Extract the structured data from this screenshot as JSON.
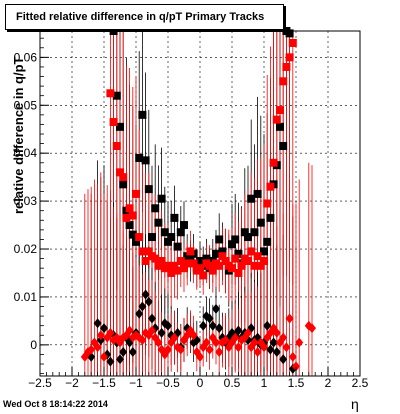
{
  "chart_data": {
    "type": "scatter",
    "title": "Fitted relative difference in q/pT  Primary Tracks",
    "xlabel": "η",
    "ylabel": "relative difference in q/pT",
    "xlim": [
      -2.5,
      2.5
    ],
    "ylim": [
      -0.0065,
      0.0655
    ],
    "x_ticks": [
      "−2.5",
      "−2",
      "−1.5",
      "−1",
      "−0.5",
      "0",
      "0.5",
      "1",
      "1.5",
      "2",
      "2.5"
    ],
    "y_ticks": [
      "0",
      "0.01",
      "0.02",
      "0.03",
      "0.04",
      "0.05",
      "0.06"
    ],
    "grid": true,
    "footer": "Wed Oct  8 18:14:22 2014",
    "series": [
      {
        "marker": "square",
        "color": "#000000",
        "points": [
          [
            -1.35,
            0.0655
          ],
          [
            -1.3,
            0.052
          ],
          [
            -1.25,
            0.0455
          ],
          [
            -1.2,
            0.0335
          ],
          [
            -1.15,
            0.028
          ],
          [
            -1.1,
            0.025
          ],
          [
            -1.05,
            0.023
          ],
          [
            -1.0,
            0.0215
          ],
          [
            -0.95,
            0.039
          ],
          [
            -0.9,
            0.048
          ],
          [
            -0.85,
            0.0385
          ],
          [
            -0.8,
            0.0325
          ],
          [
            -0.75,
            0.0225
          ],
          [
            -0.7,
            0.0285
          ],
          [
            -0.65,
            0.0255
          ],
          [
            -0.6,
            0.0305
          ],
          [
            -0.55,
            0.0235
          ],
          [
            -0.5,
            0.0215
          ],
          [
            -0.45,
            0.0225
          ],
          [
            -0.4,
            0.0265
          ],
          [
            -0.35,
            0.0205
          ],
          [
            -0.3,
            0.0235
          ],
          [
            -0.25,
            0.025
          ],
          [
            -0.2,
            0.0185
          ],
          [
            -0.15,
            0.0175
          ],
          [
            -0.1,
            0.019
          ],
          [
            -0.05,
            0.016
          ],
          [
            0.0,
            0.0175
          ],
          [
            0.05,
            0.0165
          ],
          [
            0.1,
            0.018
          ],
          [
            0.15,
            0.016
          ],
          [
            0.2,
            0.0175
          ],
          [
            0.25,
            0.019
          ],
          [
            0.3,
            0.022
          ],
          [
            0.35,
            0.0195
          ],
          [
            0.4,
            0.0175
          ],
          [
            0.45,
            0.0155
          ],
          [
            0.5,
            0.021
          ],
          [
            0.55,
            0.022
          ],
          [
            0.6,
            0.019
          ],
          [
            0.65,
            0.017
          ],
          [
            0.7,
            0.0235
          ],
          [
            0.75,
            0.0225
          ],
          [
            0.8,
            0.0305
          ],
          [
            0.85,
            0.0235
          ],
          [
            0.9,
            0.0315
          ],
          [
            0.95,
            0.0255
          ],
          [
            1.0,
            0.0195
          ],
          [
            1.05,
            0.0215
          ],
          [
            1.1,
            0.0265
          ],
          [
            1.15,
            0.0335
          ],
          [
            1.2,
            0.0375
          ],
          [
            1.25,
            0.0455
          ],
          [
            1.3,
            0.0415
          ],
          [
            1.35,
            0.0655
          ],
          [
            1.4,
            0.065
          ]
        ]
      },
      {
        "marker": "square",
        "color": "#ff0000",
        "points": [
          [
            -1.4,
            0.0525
          ],
          [
            -1.35,
            0.0465
          ],
          [
            -1.3,
            0.0415
          ],
          [
            -1.25,
            0.036
          ],
          [
            -1.2,
            0.035
          ],
          [
            -1.15,
            0.0265
          ],
          [
            -1.1,
            0.0285
          ],
          [
            -1.05,
            0.027
          ],
          [
            -1.0,
            0.0315
          ],
          [
            -0.95,
            0.0225
          ],
          [
            -0.9,
            0.0195
          ],
          [
            -0.85,
            0.0175
          ],
          [
            -0.8,
            0.0195
          ],
          [
            -0.75,
            0.0185
          ],
          [
            -0.7,
            0.018
          ],
          [
            -0.65,
            0.0165
          ],
          [
            -0.6,
            0.0175
          ],
          [
            -0.55,
            0.016
          ],
          [
            -0.5,
            0.0165
          ],
          [
            -0.45,
            0.015
          ],
          [
            -0.4,
            0.0165
          ],
          [
            -0.35,
            0.0155
          ],
          [
            -0.3,
            0.0175
          ],
          [
            -0.25,
            0.016
          ],
          [
            -0.2,
            0.017
          ],
          [
            -0.15,
            0.0195
          ],
          [
            -0.1,
            0.017
          ],
          [
            -0.05,
            0.0155
          ],
          [
            0.0,
            0.016
          ],
          [
            0.05,
            0.0145
          ],
          [
            0.1,
            0.017
          ],
          [
            0.15,
            0.0165
          ],
          [
            0.2,
            0.0155
          ],
          [
            0.25,
            0.017
          ],
          [
            0.3,
            0.0165
          ],
          [
            0.35,
            0.0185
          ],
          [
            0.4,
            0.0175
          ],
          [
            0.45,
            0.0165
          ],
          [
            0.5,
            0.016
          ],
          [
            0.55,
            0.018
          ],
          [
            0.6,
            0.015
          ],
          [
            0.65,
            0.0165
          ],
          [
            0.7,
            0.018
          ],
          [
            0.75,
            0.0175
          ],
          [
            0.8,
            0.0195
          ],
          [
            0.85,
            0.0165
          ],
          [
            0.9,
            0.0185
          ],
          [
            0.95,
            0.0165
          ],
          [
            1.0,
            0.0175
          ],
          [
            1.05,
            0.0295
          ],
          [
            1.1,
            0.033
          ],
          [
            1.15,
            0.038
          ],
          [
            1.2,
            0.047
          ],
          [
            1.25,
            0.049
          ],
          [
            1.3,
            0.055
          ],
          [
            1.35,
            0.058
          ],
          [
            1.4,
            0.06
          ],
          [
            1.45,
            0.063
          ]
        ]
      },
      {
        "marker": "diamond",
        "color": "#000000",
        "points": [
          [
            -1.7,
            -0.0025
          ],
          [
            -1.6,
            0.0045
          ],
          [
            -1.55,
            0.001
          ],
          [
            -1.5,
            0.0035
          ],
          [
            -1.45,
            -0.002
          ],
          [
            -1.4,
            -0.0035
          ],
          [
            -1.35,
            0.002
          ],
          [
            -1.3,
            0.0005
          ],
          [
            -1.25,
            -0.003
          ],
          [
            -1.2,
            -0.0015
          ],
          [
            -1.15,
            0.0015
          ],
          [
            -1.1,
            0.0005
          ],
          [
            -1.05,
            -0.0015
          ],
          [
            -1.0,
            0.0025
          ],
          [
            -0.95,
            0.0065
          ],
          [
            -0.9,
            0.008
          ],
          [
            -0.85,
            0.0105
          ],
          [
            -0.8,
            0.009
          ],
          [
            -0.75,
            0.0055
          ],
          [
            -0.7,
            0.0035
          ],
          [
            -0.6,
            0.0025
          ],
          [
            -0.55,
            0.0045
          ],
          [
            -0.5,
            0.004
          ],
          [
            -0.45,
            0.002
          ],
          [
            -0.4,
            0.0015
          ],
          [
            -0.35,
            0.0025
          ],
          [
            -0.3,
            -0.0005
          ],
          [
            -0.25,
            0.001
          ],
          [
            -0.2,
            0.0035
          ],
          [
            -0.15,
            0.0025
          ],
          [
            -0.1,
            0.0005
          ],
          [
            -0.05,
            0.001
          ],
          [
            0.05,
            0.004
          ],
          [
            0.1,
            0.006
          ],
          [
            0.15,
            0.0055
          ],
          [
            0.2,
            0.004
          ],
          [
            0.25,
            0.0075
          ],
          [
            0.3,
            0.0035
          ],
          [
            0.35,
            0.0015
          ],
          [
            0.4,
            0.0005
          ],
          [
            0.45,
            0.0015
          ],
          [
            0.5,
            0.0025
          ],
          [
            0.55,
            0.002
          ],
          [
            0.6,
            0.003
          ],
          [
            0.65,
            0.0015
          ],
          [
            0.7,
            0.0025
          ],
          [
            0.75,
            0.001
          ],
          [
            0.8,
            0.0035
          ],
          [
            0.85,
            0.001
          ],
          [
            0.9,
            0.0015
          ],
          [
            0.95,
            0.0
          ],
          [
            1.0,
            0.0005
          ],
          [
            1.05,
            0.004
          ],
          [
            1.1,
            -0.001
          ],
          [
            1.15,
            0.0005
          ],
          [
            1.2,
            -0.0015
          ],
          [
            1.3,
            -0.003
          ],
          [
            1.45,
            -0.005
          ]
        ]
      },
      {
        "marker": "diamond",
        "color": "#ff0000",
        "points": [
          [
            -1.8,
            -0.0025
          ],
          [
            -1.75,
            -0.0015
          ],
          [
            -1.7,
            -0.001
          ],
          [
            -1.65,
            0.0005
          ],
          [
            -1.6,
            -0.0005
          ],
          [
            -1.55,
            0.002
          ],
          [
            -1.5,
            -0.0025
          ],
          [
            -1.45,
            0.0015
          ],
          [
            -1.4,
            0.0025
          ],
          [
            -1.35,
            0.001
          ],
          [
            -1.3,
            0.0015
          ],
          [
            -1.25,
            0.0005
          ],
          [
            -1.2,
            0.0015
          ],
          [
            -1.15,
            0.002
          ],
          [
            -1.1,
            0.003
          ],
          [
            -1.05,
            0.0015
          ],
          [
            -1.0,
            0.002
          ],
          [
            -0.95,
            0.0015
          ],
          [
            -0.9,
            0.001
          ],
          [
            -0.85,
            0.0025
          ],
          [
            -0.8,
            0.002
          ],
          [
            -0.75,
            0.003
          ],
          [
            -0.7,
            0.0015
          ],
          [
            -0.65,
            0.0005
          ],
          [
            -0.6,
            -0.001
          ],
          [
            -0.55,
            -0.002
          ],
          [
            -0.5,
            -0.001
          ],
          [
            -0.45,
            0.0005
          ],
          [
            -0.4,
            0.0015
          ],
          [
            -0.35,
            -0.0005
          ],
          [
            -0.3,
            -0.001
          ],
          [
            -0.25,
            0.001
          ],
          [
            -0.2,
            0.002
          ],
          [
            -0.15,
            0.003
          ],
          [
            -0.1,
            0.002
          ],
          [
            -0.05,
            -0.0015
          ],
          [
            0.0,
            -0.0025
          ],
          [
            0.05,
            -0.0005
          ],
          [
            0.1,
            0.0005
          ],
          [
            0.15,
            -0.001
          ],
          [
            0.2,
            0.0015
          ],
          [
            0.25,
            0.0005
          ],
          [
            0.3,
            -0.0015
          ],
          [
            0.35,
            0.0005
          ],
          [
            0.4,
            0.001
          ],
          [
            0.45,
            -0.0005
          ],
          [
            0.5,
            0.0005
          ],
          [
            0.55,
            0.0015
          ],
          [
            0.6,
            -0.0005
          ],
          [
            0.65,
            0.001
          ],
          [
            0.7,
            0.0015
          ],
          [
            0.75,
            0.0025
          ],
          [
            0.8,
            -0.0005
          ],
          [
            0.85,
            0.0005
          ],
          [
            0.9,
            -0.0015
          ],
          [
            0.95,
            0.0005
          ],
          [
            1.0,
            -0.0005
          ],
          [
            1.05,
            0.0015
          ],
          [
            1.1,
            0.0025
          ],
          [
            1.15,
            0.0035
          ],
          [
            1.2,
            0.0025
          ],
          [
            1.25,
            0.0005
          ],
          [
            1.3,
            0.0015
          ],
          [
            1.35,
            -0.0005
          ],
          [
            1.4,
            0.0055
          ],
          [
            1.45,
            -0.0025
          ],
          [
            1.5,
            -0.0045
          ],
          [
            1.55,
            0.0005
          ],
          [
            1.7,
            0.004
          ],
          [
            1.75,
            0.0035
          ]
        ]
      }
    ]
  }
}
